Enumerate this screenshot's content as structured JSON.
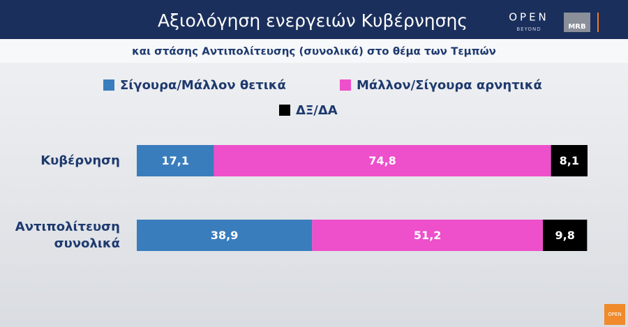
{
  "branding": {
    "channel": "OPEN",
    "channel_tagline": "BEYOND",
    "pollster": "MRB",
    "corner": "OPEN"
  },
  "chart_data": {
    "type": "stacked-bar-horizontal",
    "title": "Αξιολόγηση ενεργειών Κυβέρνησης",
    "subtitle": "και στάσης Αντιπολίτευσης (συνολικά) στο θέμα των Τεμπών",
    "categories": [
      "Κυβέρνηση",
      "Αντιπολίτευση συνολικά"
    ],
    "xlim": [
      0,
      100
    ],
    "series": [
      {
        "name": "Σίγουρα/Μάλλον θετικά",
        "color": "#3a7dbd",
        "values": [
          17.1,
          38.9
        ],
        "value_labels": [
          "17,1",
          "38,9"
        ]
      },
      {
        "name": "Μάλλον/Σίγουρα αρνητικά",
        "color": "#ee4fcb",
        "values": [
          74.8,
          51.2
        ],
        "value_labels": [
          "74,8",
          "51,2"
        ]
      },
      {
        "name": "ΔΞ/ΔΑ",
        "color": "#000000",
        "values": [
          8.1,
          9.8
        ],
        "value_labels": [
          "8,1",
          "9,8"
        ]
      }
    ]
  }
}
